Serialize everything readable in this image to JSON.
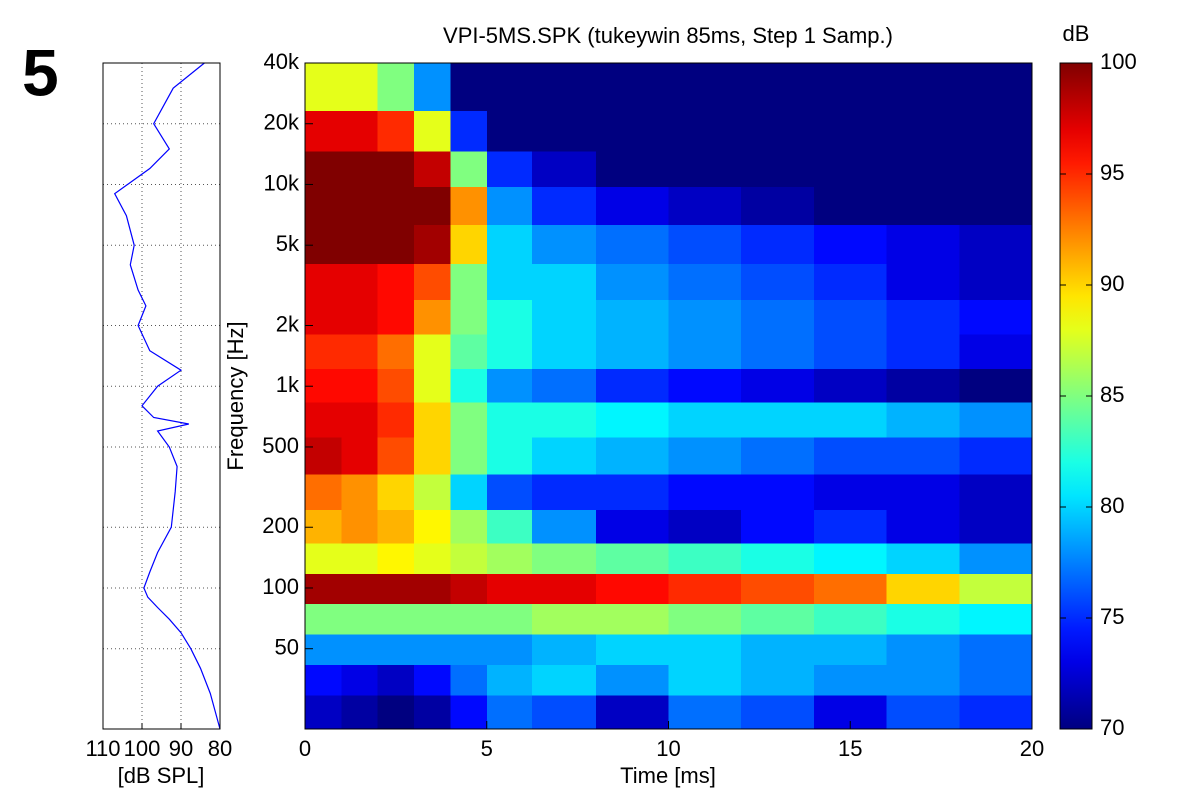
{
  "panel_label": "5",
  "chart_data": [
    {
      "type": "line",
      "xlabel": "[dB SPL]",
      "xlim": [
        110,
        80
      ],
      "xticks": [
        110,
        100,
        90,
        80
      ],
      "ylim": [
        20,
        40000
      ],
      "log_y": true,
      "grid": true,
      "x": [
        20,
        30,
        40,
        50,
        60,
        70,
        80,
        90,
        100,
        120,
        150,
        200,
        300,
        400,
        500,
        600,
        650,
        700,
        800,
        1000,
        1200,
        1500,
        2000,
        2500,
        3000,
        4000,
        5000,
        7000,
        9000,
        12000,
        15000,
        20000,
        30000,
        40000
      ],
      "series": [
        {
          "color": "#0000ff",
          "values": [
            80,
            82.5,
            85,
            87.5,
            90,
            93,
            96,
            98.5,
            99.5,
            98,
            96,
            92.5,
            91.5,
            91,
            93,
            96,
            88,
            97,
            100,
            96,
            90,
            98,
            101,
            99,
            101,
            103,
            102,
            104,
            107,
            98,
            93,
            97,
            92,
            84
          ]
        }
      ]
    },
    {
      "type": "heatmap",
      "title": "VPI-5MS.SPK (tukeywin 85ms, Step 1 Samp.)",
      "xlabel": "Time [ms]",
      "ylabel": "Frequency [Hz]",
      "xlim": [
        0,
        20
      ],
      "xticks": [
        0,
        5,
        10,
        15,
        20
      ],
      "ylim": [
        20,
        40000
      ],
      "log_y": true,
      "yticks": [
        50,
        100,
        200,
        500,
        {
          "value": 1000,
          "label": "1k"
        },
        {
          "value": 2000,
          "label": "2k"
        },
        {
          "value": 5000,
          "label": "5k"
        },
        {
          "value": 10000,
          "label": "10k"
        },
        {
          "value": 20000,
          "label": "20k"
        },
        {
          "value": 40000,
          "label": "40k"
        }
      ],
      "x": [
        0.5,
        1.5,
        2.5,
        3.5,
        4.5,
        5.5,
        7,
        9,
        11,
        13,
        15,
        17,
        19
      ],
      "y": [
        25,
        35,
        50,
        70,
        100,
        140,
        200,
        300,
        450,
        700,
        1000,
        1500,
        2200,
        3300,
        5000,
        8000,
        12000,
        18000,
        30000
      ],
      "values": [
        [
          72,
          71,
          70,
          71,
          74,
          77,
          76,
          72,
          77,
          76,
          73,
          76,
          75
        ],
        [
          74,
          73,
          72,
          74,
          77,
          79,
          80,
          78,
          80,
          79,
          78,
          78,
          77
        ],
        [
          78,
          78,
          78,
          78,
          78,
          78,
          79,
          80,
          80,
          79,
          79,
          78,
          77
        ],
        [
          85,
          85,
          85,
          85,
          85,
          85,
          86,
          86,
          85,
          84,
          83,
          82,
          81
        ],
        [
          99,
          99,
          99,
          99,
          98,
          97,
          97,
          96,
          95,
          94,
          93,
          90,
          87
        ],
        [
          88,
          88,
          89,
          88,
          87,
          86,
          85,
          84,
          83,
          82,
          81,
          80,
          78
        ],
        [
          91,
          92,
          91,
          89,
          86,
          83,
          78,
          73,
          72,
          74,
          75,
          73,
          72
        ],
        [
          93,
          92,
          90,
          87,
          80,
          76,
          75,
          75,
          74,
          74,
          73,
          73,
          72
        ],
        [
          98,
          97,
          94,
          90,
          85,
          82,
          80,
          79,
          78,
          77,
          76,
          76,
          75
        ],
        [
          97,
          97,
          95,
          90,
          85,
          82,
          82,
          81,
          80,
          80,
          80,
          79,
          78
        ],
        [
          96,
          96,
          94,
          88,
          82,
          78,
          77,
          75,
          74,
          73,
          72,
          71,
          70
        ],
        [
          95,
          95,
          93,
          88,
          84,
          82,
          80,
          79,
          78,
          77,
          76,
          75,
          73
        ],
        [
          97,
          97,
          96,
          92,
          85,
          82,
          80,
          79,
          78,
          77,
          76,
          75,
          74
        ],
        [
          97,
          97,
          96,
          94,
          85,
          80,
          80,
          78,
          77,
          76,
          75,
          73,
          72
        ],
        [
          100,
          100,
          100,
          99,
          90,
          80,
          78,
          77,
          76,
          75,
          74,
          73,
          72
        ],
        [
          100,
          100,
          100,
          100,
          92,
          78,
          75,
          73,
          72,
          71,
          70,
          70,
          70
        ],
        [
          100,
          100,
          100,
          98,
          85,
          75,
          72,
          70,
          70,
          70,
          70,
          70,
          70
        ],
        [
          97,
          97,
          95,
          88,
          75,
          70,
          70,
          70,
          70,
          70,
          70,
          70,
          70
        ],
        [
          88,
          88,
          85,
          78,
          70,
          70,
          70,
          70,
          70,
          70,
          70,
          70,
          70
        ]
      ],
      "colorbar": {
        "label": "dB",
        "colormap": "jet",
        "clim": [
          70,
          100
        ],
        "ticks": [
          70,
          75,
          80,
          85,
          90,
          95,
          100
        ]
      }
    }
  ]
}
